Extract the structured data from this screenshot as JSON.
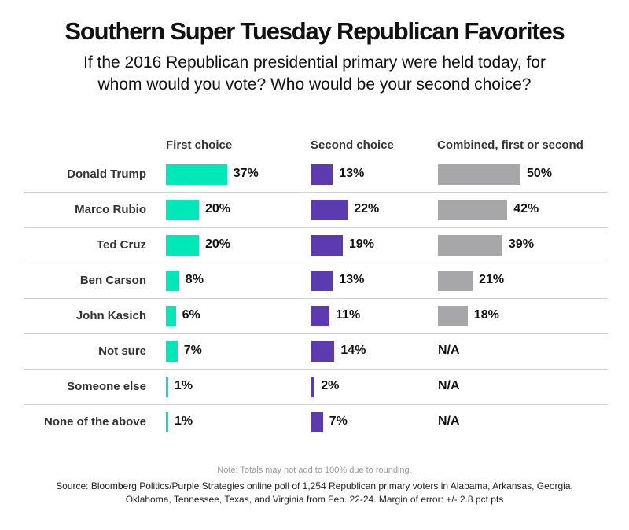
{
  "chart_data": {
    "type": "bar",
    "title": "Southern Super Tuesday Republican Favorites",
    "subtitle": "If the 2016 Republican presidential primary were held today, for whom would you vote? Who would be your second choice?",
    "columns": [
      "First choice",
      "Second choice",
      "Combined, first or second"
    ],
    "categories": [
      "Donald Trump",
      "Marco Rubio",
      "Ted Cruz",
      "Ben Carson",
      "John Kasich",
      "Not sure",
      "Someone else",
      "None of the above"
    ],
    "series": [
      {
        "name": "First choice",
        "key": "first",
        "values": [
          37,
          20,
          20,
          8,
          6,
          7,
          1,
          1
        ],
        "labels": [
          "37%",
          "20%",
          "20%",
          "8%",
          "6%",
          "7%",
          "1%",
          "1%"
        ]
      },
      {
        "name": "Second choice",
        "key": "second",
        "values": [
          13,
          22,
          19,
          13,
          11,
          14,
          2,
          7
        ],
        "labels": [
          "13%",
          "22%",
          "19%",
          "13%",
          "11%",
          "14%",
          "2%",
          "7%"
        ]
      },
      {
        "name": "Combined, first or second",
        "key": "combined",
        "values": [
          50,
          42,
          39,
          21,
          18,
          null,
          null,
          null
        ],
        "labels": [
          "50%",
          "42%",
          "39%",
          "21%",
          "18%",
          "N/A",
          "N/A",
          "N/A"
        ]
      }
    ],
    "colors": {
      "first": "#00e8b8",
      "second": "#5c3bb0",
      "combined": "#a7a7aa"
    },
    "xlabel": "",
    "ylabel": ""
  },
  "note": "Note: Totals may not add to 100% due to rounding.",
  "source_line1": "Source: Bloomberg Politics/Purple Strategies online poll of 1,254 Republican primary voters in Alabama, Arkansas, Georgia,",
  "source_line2": "Oklahoma, Tennessee, Texas, and Virginia from Feb. 22-24. Margin of error: +/- 2.8 pct pts"
}
